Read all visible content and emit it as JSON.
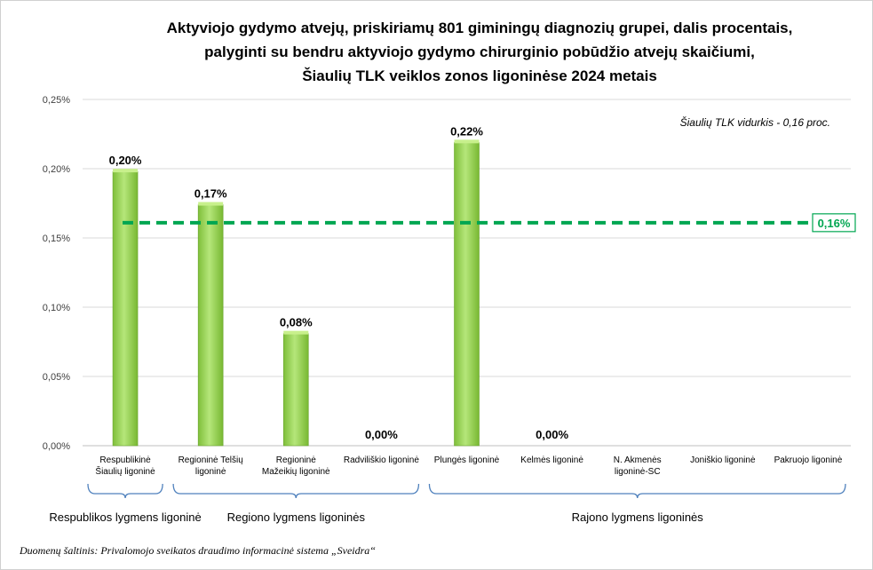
{
  "chart_data": {
    "type": "bar",
    "title_lines": [
      "Aktyviojo gydymo atvejų, priskiriamų 801 giminingų diagnozių grupei, dalis procentais,",
      "palyginti su bendru aktyviojo gydymo chirurginio pobūdžio atvejų skaičiumi,",
      "Šiaulių TLK veiklos zonos ligoninėse 2024 metais"
    ],
    "categories": [
      [
        "Respublikinė",
        "Šiaulių ligoninė"
      ],
      [
        "Regioninė Telšių",
        "ligoninė"
      ],
      [
        "Regioninė",
        "Mažeikių ligoninė"
      ],
      [
        "Radviliškio ligoninė"
      ],
      [
        "Plungės ligoninė"
      ],
      [
        "Kelmės ligoninė"
      ],
      [
        "N. Akmenės",
        "ligoninė-SC"
      ],
      [
        "Joniškio ligoninė"
      ],
      [
        "Pakruojo ligoninė"
      ]
    ],
    "values": [
      0.198,
      0.174,
      0.081,
      0.0,
      0.219,
      0.0,
      null,
      null,
      null
    ],
    "data_labels": [
      "0,20%",
      "0,17%",
      "0,08%",
      "0,00%",
      "0,22%",
      "0,00%",
      "",
      "",
      ""
    ],
    "yticks": [
      "0,00%",
      "0,05%",
      "0,10%",
      "0,15%",
      "0,20%",
      "0,25%"
    ],
    "ylim": [
      0,
      0.25
    ],
    "grid": true,
    "bar_color": "#92d050",
    "reference_line": {
      "value": 0.161,
      "label": "0,16%",
      "color": "#00a651"
    },
    "annotation": "Šiaulių TLK vidurkis - 0,16 proc.",
    "groups": [
      {
        "label": "Respublikos lygmens ligoninė",
        "from": 0,
        "to": 0
      },
      {
        "label": "Regiono lygmens ligoninės",
        "from": 1,
        "to": 3
      },
      {
        "label": "Rajono lygmens ligoninės",
        "from": 4,
        "to": 8
      }
    ],
    "bracket_color": "#4f81bd"
  },
  "footer": {
    "source": "Duomenų šaltinis: Privalomojo sveikatos draudimo informacinė sistema „Sveidra“"
  }
}
